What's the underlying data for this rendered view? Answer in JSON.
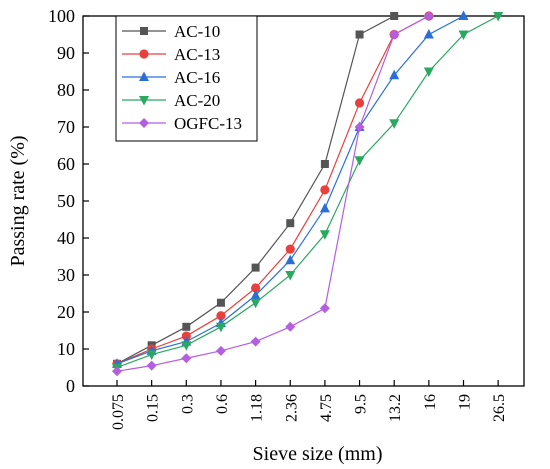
{
  "chart_data": {
    "type": "line",
    "xlabel": "Sieve size (mm)",
    "ylabel": "Passing rate (%)",
    "ylim": [
      0,
      100
    ],
    "yticks": [
      0,
      10,
      20,
      30,
      40,
      50,
      60,
      70,
      80,
      90,
      100
    ],
    "categories": [
      "0.075",
      "0.15",
      "0.3",
      "0.6",
      "1.18",
      "2.36",
      "4.75",
      "9.5",
      "13.2",
      "16",
      "19",
      "26.5"
    ],
    "legend_position": "top-left",
    "grid": false,
    "series": [
      {
        "name": "AC-10",
        "color": "#555555",
        "marker": "square",
        "values": [
          6,
          11,
          16,
          22.5,
          32,
          44,
          60,
          95,
          100,
          null,
          null,
          null
        ]
      },
      {
        "name": "AC-13",
        "color": "#e8403c",
        "marker": "circle",
        "values": [
          6,
          10,
          13.5,
          19,
          26.5,
          37,
          53,
          76.5,
          95,
          100,
          null,
          null
        ]
      },
      {
        "name": "AC-16",
        "color": "#2a6fd6",
        "marker": "triangle-up",
        "values": [
          6,
          9.5,
          12,
          17,
          24.5,
          34,
          48,
          70,
          84,
          95,
          100,
          null
        ]
      },
      {
        "name": "AC-20",
        "color": "#2aa860",
        "marker": "triangle-down",
        "values": [
          5,
          8.5,
          11,
          16,
          22.5,
          30,
          41,
          61,
          71,
          85,
          95,
          100
        ]
      },
      {
        "name": "OGFC-13",
        "color": "#b45fe0",
        "marker": "diamond",
        "values": [
          4,
          5.5,
          7.5,
          9.5,
          12,
          16,
          21,
          70,
          95,
          100,
          null,
          null
        ]
      }
    ]
  }
}
